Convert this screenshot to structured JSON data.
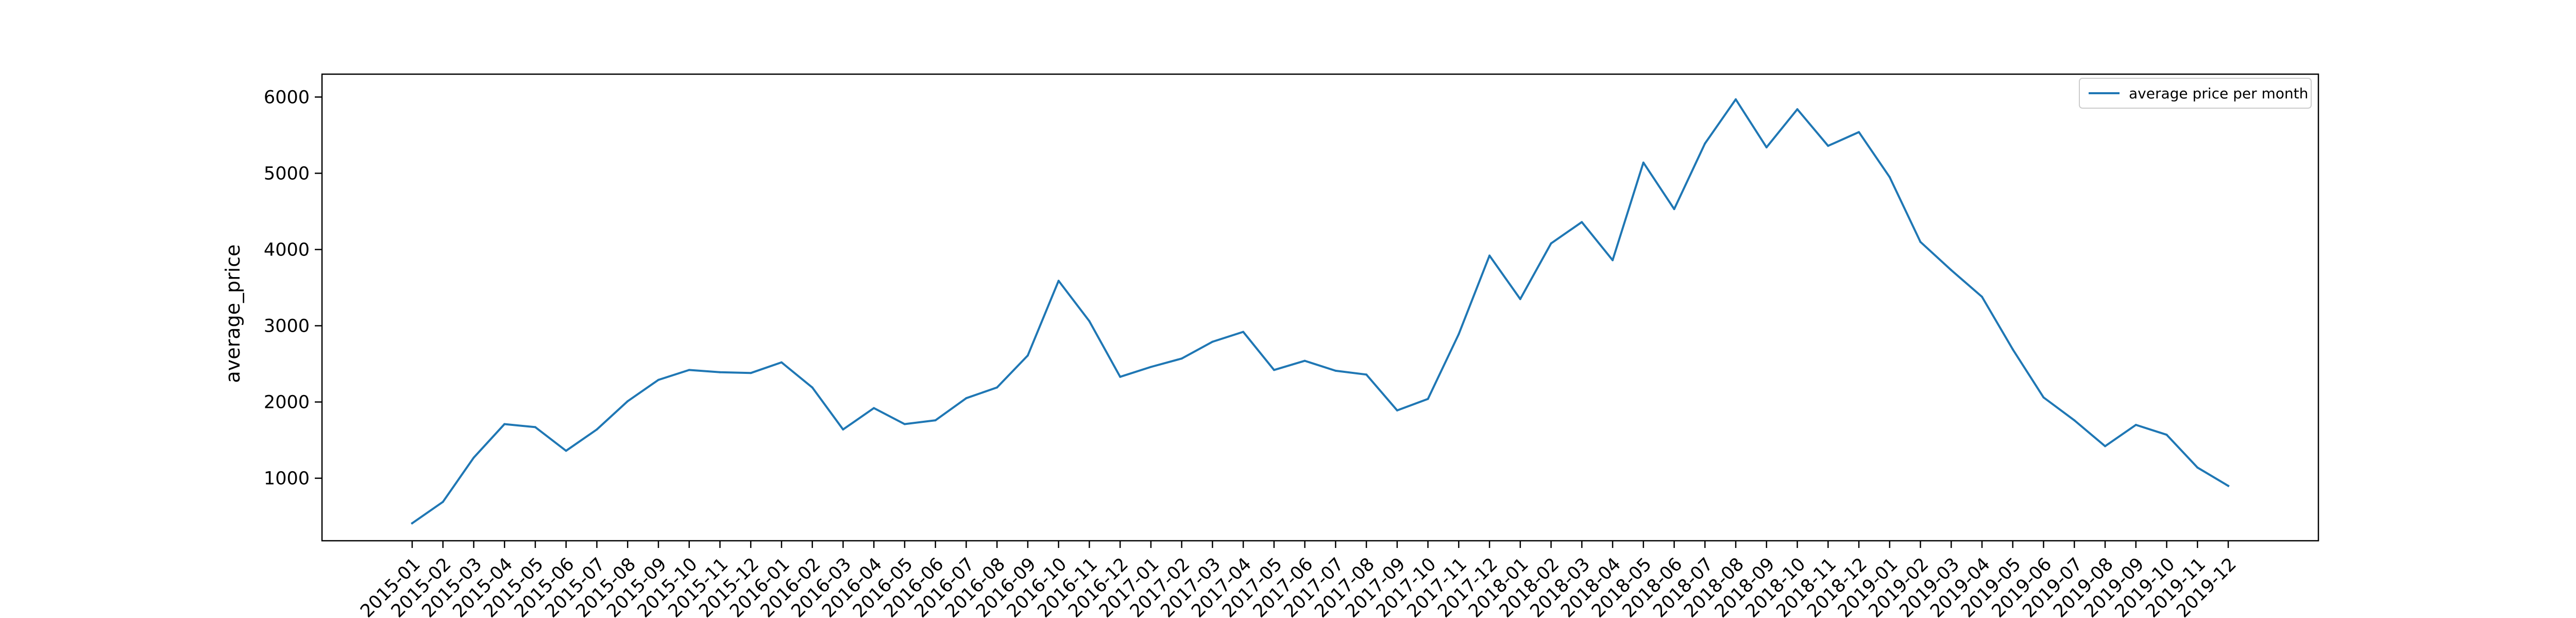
{
  "chart_data": {
    "type": "line",
    "title": "",
    "xlabel": "",
    "ylabel": "average_price",
    "ylim": [
      180,
      6300
    ],
    "yticks": [
      1000,
      2000,
      3000,
      4000,
      5000,
      6000
    ],
    "grid": false,
    "legend_position": "top-right",
    "categories": [
      "2015-01",
      "2015-02",
      "2015-03",
      "2015-04",
      "2015-05",
      "2015-06",
      "2015-07",
      "2015-08",
      "2015-09",
      "2015-10",
      "2015-11",
      "2015-12",
      "2016-01",
      "2016-02",
      "2016-03",
      "2016-04",
      "2016-05",
      "2016-06",
      "2016-07",
      "2016-08",
      "2016-09",
      "2016-10",
      "2016-11",
      "2016-12",
      "2017-01",
      "2017-02",
      "2017-03",
      "2017-04",
      "2017-05",
      "2017-06",
      "2017-07",
      "2017-08",
      "2017-09",
      "2017-10",
      "2017-11",
      "2017-12",
      "2018-01",
      "2018-02",
      "2018-03",
      "2018-04",
      "2018-05",
      "2018-06",
      "2018-07",
      "2018-08",
      "2018-09",
      "2018-10",
      "2018-11",
      "2018-12",
      "2019-01",
      "2019-02",
      "2019-03",
      "2019-04",
      "2019-05",
      "2019-06",
      "2019-07",
      "2019-08",
      "2019-09",
      "2019-10",
      "2019-11",
      "2019-12"
    ],
    "series": [
      {
        "name": "average price per month",
        "color": "#1f77b4",
        "values": [
          410,
          690,
          1270,
          1710,
          1670,
          1360,
          1640,
          2010,
          2290,
          2420,
          2390,
          2380,
          2520,
          2190,
          1640,
          1920,
          1710,
          1760,
          2050,
          2190,
          2610,
          3590,
          3060,
          2330,
          2460,
          2570,
          2790,
          2920,
          2420,
          2540,
          2410,
          2360,
          1890,
          2040,
          2890,
          3920,
          3350,
          4080,
          4360,
          3860,
          5140,
          4530,
          5390,
          5970,
          5340,
          5840,
          5360,
          5540,
          4950,
          4100,
          3730,
          3380,
          2690,
          2060,
          1760,
          1420,
          1700,
          1570,
          1140,
          900
        ]
      }
    ]
  }
}
